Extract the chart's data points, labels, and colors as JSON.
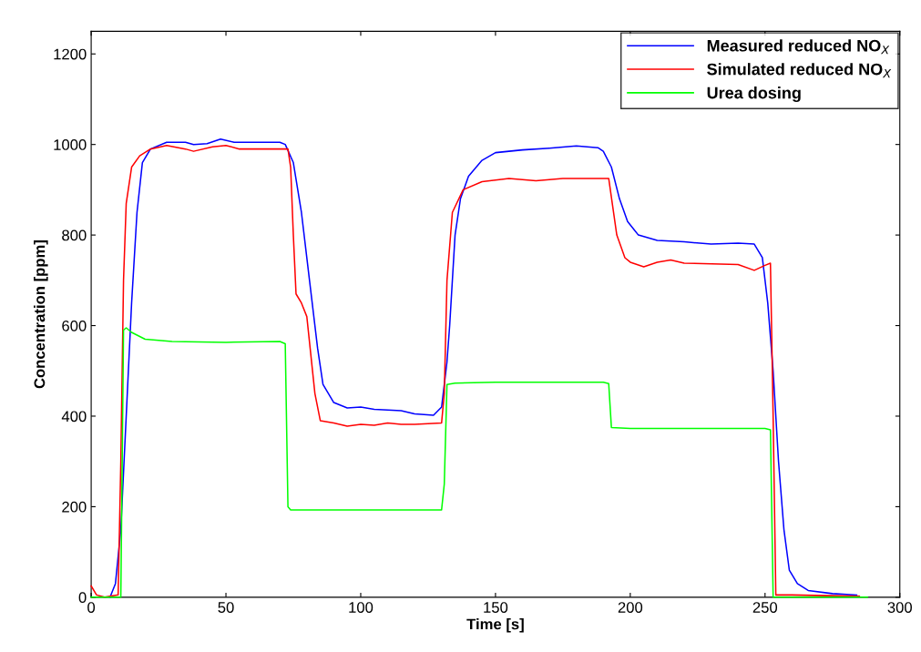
{
  "chart_data": {
    "type": "line",
    "xlabel": "Time [s]",
    "ylabel": "Concentration [ppm]",
    "xlim": [
      0,
      300
    ],
    "xticks": [
      0,
      50,
      100,
      150,
      200,
      250,
      300
    ],
    "ylim": [
      0,
      1250
    ],
    "yticks": [
      0,
      200,
      400,
      600,
      800,
      1000,
      1200
    ],
    "grid": false,
    "legend": "top right",
    "marker": "none",
    "line_style": "solid",
    "series": [
      {
        "name": "Measured reduced NO$_{X}$",
        "color": "#0000ff",
        "x": [
          7,
          9,
          11,
          13,
          15,
          17,
          19,
          22,
          28,
          35,
          38,
          43,
          48,
          53,
          60,
          70,
          72,
          75,
          78,
          81,
          84,
          86,
          90,
          95,
          100,
          105,
          115,
          120,
          127,
          130,
          132,
          133,
          135,
          137,
          140,
          145,
          150,
          160,
          170,
          180,
          188,
          190,
          193,
          196,
          199,
          203,
          210,
          220,
          230,
          240,
          246,
          249,
          251,
          253,
          255,
          257,
          259,
          262,
          266,
          275,
          284
        ],
        "values": [
          0,
          30,
          150,
          400,
          650,
          850,
          960,
          990,
          1005,
          1005,
          1000,
          1002,
          1012,
          1005,
          1005,
          1005,
          1000,
          960,
          850,
          700,
          550,
          470,
          430,
          418,
          420,
          415,
          412,
          405,
          402,
          420,
          520,
          600,
          800,
          880,
          930,
          965,
          982,
          988,
          992,
          997,
          993,
          985,
          950,
          880,
          830,
          800,
          788,
          785,
          780,
          782,
          780,
          750,
          650,
          500,
          300,
          150,
          60,
          30,
          15,
          8,
          5
        ]
      },
      {
        "name": "Simulated reduced NO$_{X}$",
        "color": "#ff0000",
        "x": [
          0,
          2,
          5,
          10,
          11,
          12,
          13,
          15,
          18,
          22,
          28,
          35,
          38,
          45,
          50,
          55,
          65,
          73,
          74,
          75,
          76,
          78,
          80,
          83,
          85,
          90,
          95,
          100,
          105,
          110,
          115,
          120,
          130,
          131,
          132,
          134,
          138,
          145,
          155,
          165,
          175,
          192,
          195,
          198,
          200,
          205,
          210,
          215,
          220,
          240,
          246,
          250,
          252,
          253,
          254,
          260,
          285
        ],
        "values": [
          25,
          5,
          0,
          5,
          300,
          700,
          870,
          950,
          975,
          990,
          998,
          990,
          985,
          995,
          998,
          990,
          990,
          990,
          950,
          800,
          670,
          650,
          620,
          450,
          390,
          385,
          378,
          382,
          380,
          385,
          382,
          382,
          385,
          450,
          700,
          850,
          900,
          918,
          925,
          920,
          925,
          925,
          800,
          750,
          740,
          730,
          740,
          745,
          738,
          735,
          722,
          733,
          738,
          400,
          5,
          5,
          2
        ]
      },
      {
        "name": "Urea dosing",
        "color": "#00ff00",
        "x": [
          0,
          11,
          12,
          13,
          15,
          20,
          30,
          50,
          70,
          72,
          73,
          74,
          130,
          131,
          132,
          135,
          150,
          170,
          190,
          192,
          193,
          200,
          250,
          252,
          253,
          288
        ],
        "values": [
          0,
          0,
          590,
          595,
          585,
          570,
          565,
          563,
          565,
          560,
          200,
          193,
          193,
          250,
          470,
          473,
          475,
          475,
          475,
          472,
          375,
          373,
          373,
          370,
          0,
          0
        ]
      }
    ]
  }
}
